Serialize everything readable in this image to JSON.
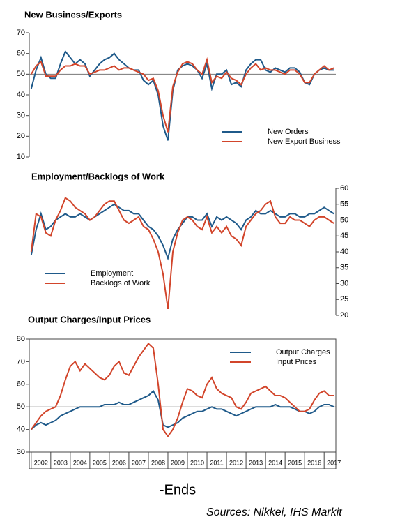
{
  "chart_data": [
    {
      "type": "line",
      "title": "New Business/Exports",
      "x": [
        2002,
        2002.25,
        2002.5,
        2002.75,
        2003,
        2003.25,
        2003.5,
        2003.75,
        2004,
        2004.25,
        2004.5,
        2004.75,
        2005,
        2005.25,
        2005.5,
        2005.75,
        2006,
        2006.25,
        2006.5,
        2006.75,
        2007,
        2007.25,
        2007.5,
        2007.75,
        2008,
        2008.25,
        2008.5,
        2008.75,
        2009,
        2009.25,
        2009.5,
        2009.75,
        2010,
        2010.25,
        2010.5,
        2010.75,
        2011,
        2011.25,
        2011.5,
        2011.75,
        2012,
        2012.25,
        2012.5,
        2012.75,
        2013,
        2013.25,
        2013.5,
        2013.75,
        2014,
        2014.25,
        2014.5,
        2014.75,
        2015,
        2015.25,
        2015.5,
        2015.75,
        2016,
        2016.25,
        2016.5,
        2016.75,
        2017,
        2017.25,
        2017.5
      ],
      "series": [
        {
          "name": "New Orders",
          "color": "#1f5a8a",
          "values": [
            43,
            52,
            58,
            50,
            48,
            48,
            55,
            61,
            58,
            55,
            57,
            55,
            49,
            52,
            55,
            57,
            58,
            60,
            57,
            55,
            53,
            52,
            52,
            47,
            45,
            47,
            40,
            25,
            18,
            42,
            52,
            54,
            55,
            54,
            52,
            48,
            55,
            43,
            50,
            50,
            52,
            45,
            46,
            44,
            52,
            55,
            57,
            57,
            52,
            51,
            53,
            52,
            51,
            53,
            53,
            51,
            46,
            45,
            50,
            52,
            53,
            52,
            52
          ]
        },
        {
          "name": "New Export Business",
          "color": "#d2452b",
          "values": [
            50,
            54,
            56,
            49,
            49,
            49,
            52,
            54,
            54,
            55,
            54,
            54,
            50,
            51,
            52,
            52,
            53,
            54,
            52,
            53,
            53,
            52,
            51,
            50,
            47,
            48,
            42,
            30,
            22,
            44,
            51,
            55,
            56,
            55,
            52,
            50,
            57,
            46,
            49,
            48,
            51,
            48,
            47,
            45,
            50,
            53,
            55,
            52,
            53,
            52,
            52,
            51,
            50,
            52,
            52,
            50,
            46,
            46,
            50,
            52,
            54,
            52,
            53
          ]
        }
      ],
      "xlim": [
        2001.9,
        2017.6
      ],
      "ylim": [
        10,
        70
      ],
      "yticks": [
        10,
        20,
        30,
        40,
        50,
        60,
        70
      ],
      "hline": 50,
      "y_axis_side": "left",
      "legend": "lower right"
    },
    {
      "type": "line",
      "title": "Employment/Backlogs of Work",
      "x": [
        2002,
        2002.25,
        2002.5,
        2002.75,
        2003,
        2003.25,
        2003.5,
        2003.75,
        2004,
        2004.25,
        2004.5,
        2004.75,
        2005,
        2005.25,
        2005.5,
        2005.75,
        2006,
        2006.25,
        2006.5,
        2006.75,
        2007,
        2007.25,
        2007.5,
        2007.75,
        2008,
        2008.25,
        2008.5,
        2008.75,
        2009,
        2009.25,
        2009.5,
        2009.75,
        2010,
        2010.25,
        2010.5,
        2010.75,
        2011,
        2011.25,
        2011.5,
        2011.75,
        2012,
        2012.25,
        2012.5,
        2012.75,
        2013,
        2013.25,
        2013.5,
        2013.75,
        2014,
        2014.25,
        2014.5,
        2014.75,
        2015,
        2015.25,
        2015.5,
        2015.75,
        2016,
        2016.25,
        2016.5,
        2016.75,
        2017,
        2017.25,
        2017.5
      ],
      "series": [
        {
          "name": "Employment",
          "color": "#1f5a8a",
          "values": [
            39,
            47,
            52,
            47,
            48,
            50,
            51,
            52,
            51,
            51,
            52,
            51,
            50,
            51,
            52,
            53,
            54,
            55,
            54,
            53,
            53,
            52,
            52,
            50,
            48,
            47,
            45,
            42,
            38,
            44,
            47,
            49,
            51,
            51,
            50,
            50,
            52,
            48,
            51,
            50,
            51,
            50,
            49,
            47,
            50,
            51,
            53,
            52,
            52,
            53,
            52,
            51,
            51,
            52,
            52,
            51,
            51,
            52,
            52,
            53,
            54,
            53,
            52
          ]
        },
        {
          "name": "Backlogs of Work",
          "color": "#d2452b",
          "values": [
            40,
            52,
            51,
            46,
            45,
            50,
            53,
            57,
            56,
            54,
            53,
            52,
            50,
            51,
            53,
            55,
            56,
            56,
            53,
            50,
            49,
            50,
            51,
            48,
            47,
            44,
            40,
            33,
            22,
            40,
            46,
            50,
            51,
            50,
            48,
            47,
            51,
            46,
            48,
            46,
            48,
            45,
            44,
            42,
            48,
            50,
            52,
            53,
            55,
            56,
            51,
            49,
            49,
            51,
            50,
            50,
            49,
            48,
            50,
            51,
            51,
            50,
            49
          ]
        }
      ],
      "xlim": [
        2001.9,
        2017.6
      ],
      "ylim": [
        20,
        60
      ],
      "yticks": [
        20,
        25,
        30,
        35,
        40,
        45,
        50,
        55,
        60
      ],
      "hline": 50,
      "y_axis_side": "right",
      "legend": "lower left"
    },
    {
      "type": "line",
      "title": "Output Charges/Input Prices",
      "x": [
        2002,
        2002.25,
        2002.5,
        2002.75,
        2003,
        2003.25,
        2003.5,
        2003.75,
        2004,
        2004.25,
        2004.5,
        2004.75,
        2005,
        2005.25,
        2005.5,
        2005.75,
        2006,
        2006.25,
        2006.5,
        2006.75,
        2007,
        2007.25,
        2007.5,
        2007.75,
        2008,
        2008.25,
        2008.5,
        2008.75,
        2009,
        2009.25,
        2009.5,
        2009.75,
        2010,
        2010.25,
        2010.5,
        2010.75,
        2011,
        2011.25,
        2011.5,
        2011.75,
        2012,
        2012.25,
        2012.5,
        2012.75,
        2013,
        2013.25,
        2013.5,
        2013.75,
        2014,
        2014.25,
        2014.5,
        2014.75,
        2015,
        2015.25,
        2015.5,
        2015.75,
        2016,
        2016.25,
        2016.5,
        2016.75,
        2017,
        2017.25,
        2017.5
      ],
      "series": [
        {
          "name": "Output Charges",
          "color": "#1f5a8a",
          "values": [
            40,
            42,
            43,
            42,
            43,
            44,
            46,
            47,
            48,
            49,
            50,
            50,
            50,
            50,
            50,
            51,
            51,
            51,
            52,
            51,
            51,
            52,
            53,
            54,
            55,
            57,
            53,
            42,
            41,
            42,
            43,
            45,
            46,
            47,
            48,
            48,
            49,
            50,
            49,
            49,
            48,
            47,
            46,
            47,
            48,
            49,
            50,
            50,
            50,
            50,
            51,
            50,
            50,
            50,
            49,
            48,
            48,
            47,
            48,
            50,
            51,
            51,
            50
          ]
        },
        {
          "name": "Input Prices",
          "color": "#d2452b",
          "values": [
            40,
            43,
            46,
            48,
            49,
            50,
            55,
            62,
            68,
            70,
            66,
            69,
            67,
            65,
            63,
            62,
            64,
            68,
            70,
            65,
            64,
            68,
            72,
            75,
            78,
            76,
            60,
            40,
            37,
            40,
            45,
            52,
            58,
            57,
            55,
            54,
            60,
            63,
            58,
            56,
            55,
            54,
            50,
            49,
            52,
            56,
            57,
            58,
            59,
            57,
            55,
            55,
            54,
            52,
            50,
            48,
            48,
            49,
            53,
            56,
            57,
            55,
            55
          ]
        }
      ],
      "xlim": [
        2001.9,
        2017.6
      ],
      "ylim": [
        30,
        80
      ],
      "yticks": [
        30,
        40,
        50,
        60,
        70,
        80
      ],
      "xticks": [
        2002,
        2003,
        2004,
        2005,
        2006,
        2007,
        2008,
        2009,
        2010,
        2011,
        2012,
        2013,
        2014,
        2015,
        2016,
        2017
      ],
      "hline": 50,
      "y_axis_side": "left",
      "legend": "upper right"
    }
  ],
  "footer": {
    "ends": "-Ends",
    "source": "Sources: Nikkei, IHS Markit"
  }
}
